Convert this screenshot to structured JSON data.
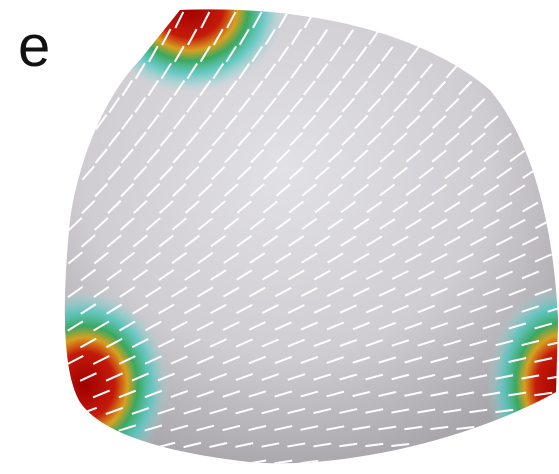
{
  "panel_label": "e"
}
